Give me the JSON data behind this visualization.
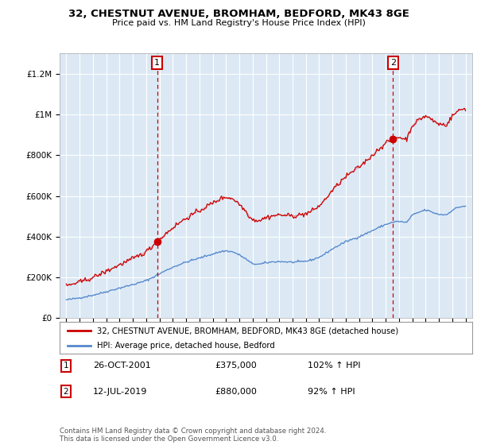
{
  "title": "32, CHESTNUT AVENUE, BROMHAM, BEDFORD, MK43 8GE",
  "subtitle": "Price paid vs. HM Land Registry's House Price Index (HPI)",
  "property_label": "32, CHESTNUT AVENUE, BROMHAM, BEDFORD, MK43 8GE (detached house)",
  "hpi_label": "HPI: Average price, detached house, Bedford",
  "property_color": "#cc0000",
  "hpi_color": "#5588cc",
  "marker1_x": 2001.82,
  "marker1_y": 375000,
  "marker2_x": 2019.54,
  "marker2_y": 880000,
  "marker1_label": "1",
  "marker2_label": "2",
  "marker1_date": "26-OCT-2001",
  "marker1_price": "£375,000",
  "marker1_hpi": "102% ↑ HPI",
  "marker2_date": "12-JUL-2019",
  "marker2_price": "£880,000",
  "marker2_hpi": "92% ↑ HPI",
  "footer": "Contains HM Land Registry data © Crown copyright and database right 2024.\nThis data is licensed under the Open Government Licence v3.0.",
  "plot_bg_color": "#dce9f5",
  "background_color": "#ffffff",
  "ylim": [
    0,
    1300000
  ],
  "xlim": [
    1994.5,
    2025.5
  ],
  "yticks": [
    0,
    200000,
    400000,
    600000,
    800000,
    1000000,
    1200000
  ],
  "ylabels": [
    "£0",
    "£200K",
    "£400K",
    "£600K",
    "£800K",
    "£1M",
    "£1.2M"
  ]
}
